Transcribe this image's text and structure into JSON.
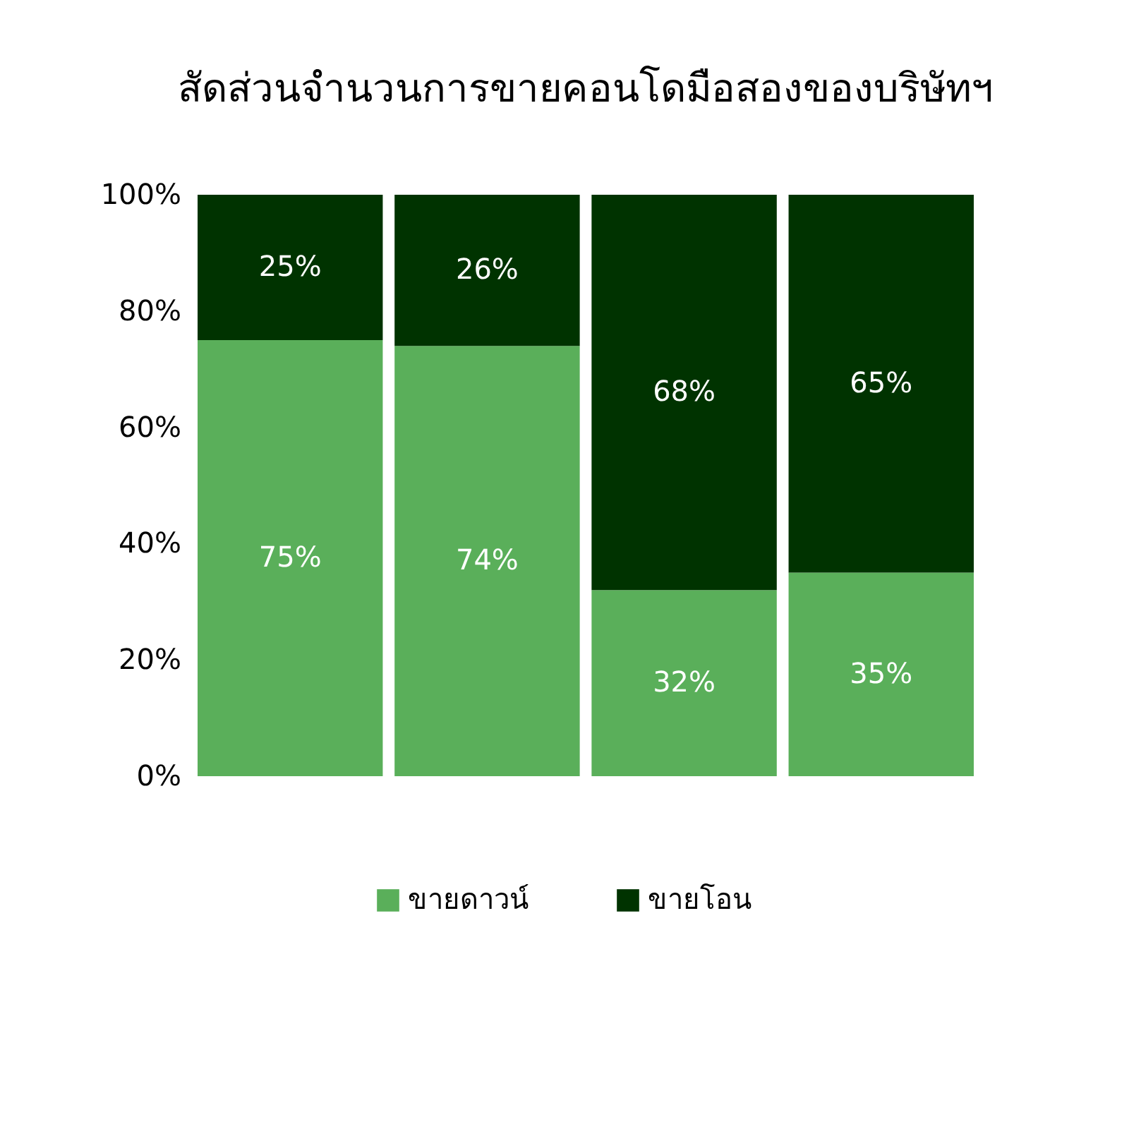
{
  "chart_data": {
    "type": "bar",
    "title": "สัดส่วนจำนวนการขายคอนโดมือสองของบริษัทฯ",
    "categories": [
      null,
      null,
      null,
      null
    ],
    "stacked": true,
    "ylim": [
      0,
      100
    ],
    "yticks": [
      {
        "value": 0,
        "label": "0%"
      },
      {
        "value": 20,
        "label": "20%"
      },
      {
        "value": 40,
        "label": "40%"
      },
      {
        "value": 60,
        "label": "60%"
      },
      {
        "value": 80,
        "label": "80%"
      },
      {
        "value": 100,
        "label": "100%"
      }
    ],
    "grid": false,
    "legend": "bottom",
    "tick_labels": "y",
    "series": [
      {
        "name": "ขายดาวน์",
        "color": "#5aaf5a",
        "values": [
          75,
          74,
          32,
          35
        ],
        "value_labels": [
          "75%",
          "74%",
          "32%",
          "35%"
        ]
      },
      {
        "name": "ขายโอน",
        "color": "#003300",
        "values": [
          25,
          26,
          68,
          65
        ],
        "value_labels": [
          "25%",
          "26%",
          "68%",
          "65%"
        ]
      }
    ]
  }
}
